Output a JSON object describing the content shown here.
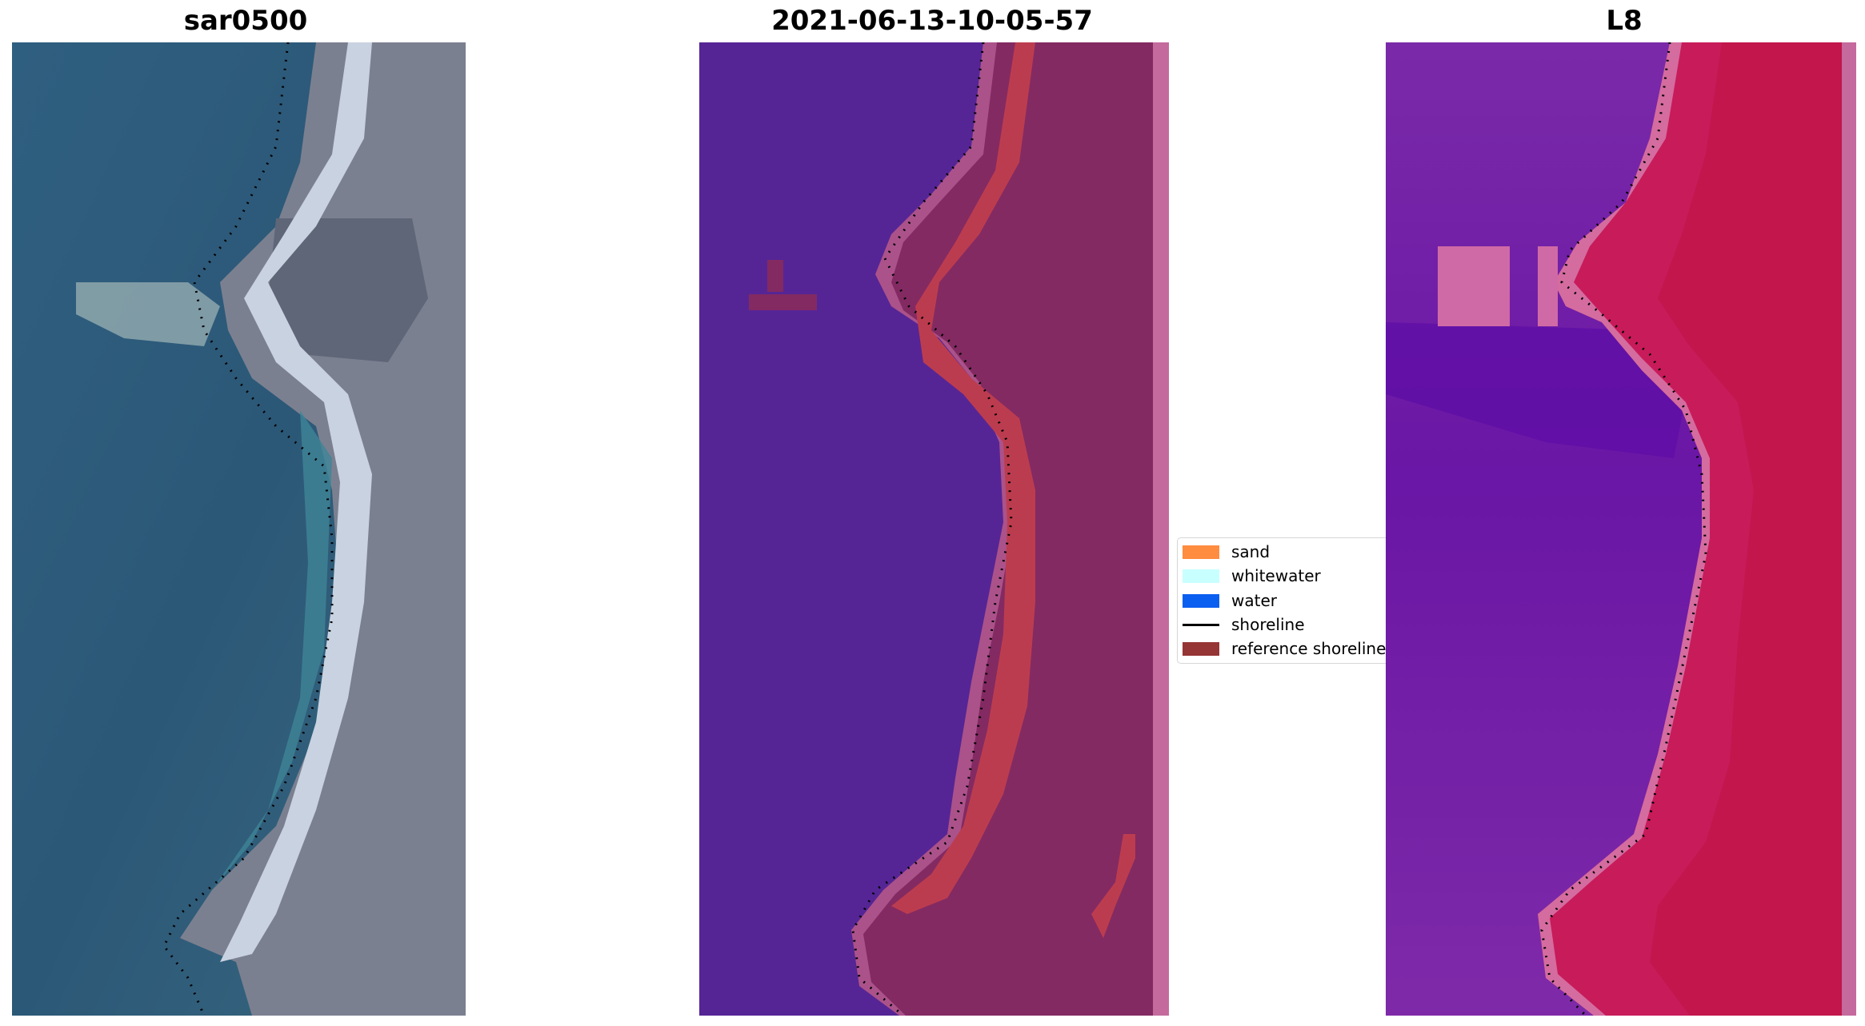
{
  "figure": {
    "panels": [
      {
        "title": "sar0500",
        "image": "rgb-satellite-image"
      },
      {
        "title": "2021-06-13-10-05-57",
        "image": "classified-image"
      },
      {
        "title": "L8",
        "image": "mndwi-image"
      }
    ],
    "legend": {
      "items": [
        {
          "label": "sand",
          "color": "#ff8c3f",
          "kind": "patch"
        },
        {
          "label": "whitewater",
          "color": "#c8ffff",
          "kind": "patch"
        },
        {
          "label": "water",
          "color": "#0b5ff0",
          "kind": "patch"
        },
        {
          "label": "shoreline",
          "color": "#000000",
          "kind": "line"
        },
        {
          "label": "reference shoreline",
          "color": "#963535",
          "kind": "patch"
        }
      ]
    },
    "colors": {
      "rgb_water": "#335f7c",
      "rgb_land": "#7b8090",
      "rgb_beach": "#c9d2e0",
      "class_water": "#552596",
      "class_land": "#832a62",
      "class_sand": "#bc3c4f",
      "class_edge": "#b8609a",
      "mndwi_water": "#7626a6",
      "mndwi_land": "#c81b5a",
      "mndwi_edge": "#c8679f"
    }
  }
}
